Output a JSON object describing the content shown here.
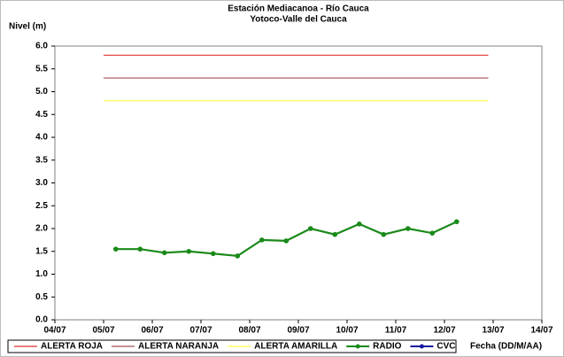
{
  "chart_data": {
    "type": "line",
    "title": "Estación Mediacanoa - Río Cauca",
    "subtitle": "Yotoco-Valle del Cauca",
    "y_label": "Nivel (m)",
    "x_label": "Fecha (DD/M/AA)",
    "xlim": [
      4,
      14
    ],
    "xticks": [
      {
        "value": 4,
        "label": "04/07"
      },
      {
        "value": 5,
        "label": "05/07"
      },
      {
        "value": 6,
        "label": "06/07"
      },
      {
        "value": 7,
        "label": "07/07"
      },
      {
        "value": 8,
        "label": "08/07"
      },
      {
        "value": 9,
        "label": "09/07"
      },
      {
        "value": 10,
        "label": "10/07"
      },
      {
        "value": 11,
        "label": "11/07"
      },
      {
        "value": 12,
        "label": "12/07"
      },
      {
        "value": 13,
        "label": "13/07"
      },
      {
        "value": 14,
        "label": "14/07"
      }
    ],
    "ylim": [
      0,
      6
    ],
    "yticks": [
      {
        "value": 0,
        "label": "0.0"
      },
      0.5,
      {
        "value": 1,
        "label": "1.0"
      },
      1.5,
      {
        "value": 2,
        "label": "2.0"
      },
      2.5,
      {
        "value": 3,
        "label": "3.0"
      },
      3.5,
      {
        "value": 4,
        "label": "4.0"
      },
      4.5,
      {
        "value": 5,
        "label": "5.0"
      },
      5.5,
      {
        "value": 6,
        "label": "6.0"
      }
    ],
    "grid": false,
    "legend": "bottom",
    "series": [
      {
        "name": "ALERTA ROJA",
        "color": "#e03030",
        "marker": "none",
        "x": [
          5,
          12.9
        ],
        "values": [
          5.8,
          5.8
        ]
      },
      {
        "name": "ALERTA NARANJA",
        "color": "#a05050",
        "marker": "none",
        "x": [
          5,
          12.9
        ],
        "values": [
          5.3,
          5.3
        ]
      },
      {
        "name": "ALERTA AMARILLA",
        "color": "#ffff40",
        "marker": "none",
        "x": [
          5,
          12.9
        ],
        "values": [
          4.8,
          4.8
        ]
      },
      {
        "name": "RADIO",
        "color": "#1a8a1a",
        "marker": "circle",
        "x": [
          5.25,
          5.75,
          6.25,
          6.75,
          7.25,
          7.75,
          8.25,
          8.75,
          9.25,
          9.75,
          10.25,
          10.75,
          11.25,
          11.75,
          12.25
        ],
        "values": [
          1.55,
          1.55,
          1.47,
          1.5,
          1.45,
          1.4,
          1.75,
          1.73,
          2.0,
          1.87,
          2.1,
          1.87,
          2.0,
          1.9,
          2.15
        ]
      },
      {
        "name": "CVC",
        "color": "#1a1aa0",
        "marker": "circle",
        "x": [],
        "values": []
      }
    ]
  }
}
